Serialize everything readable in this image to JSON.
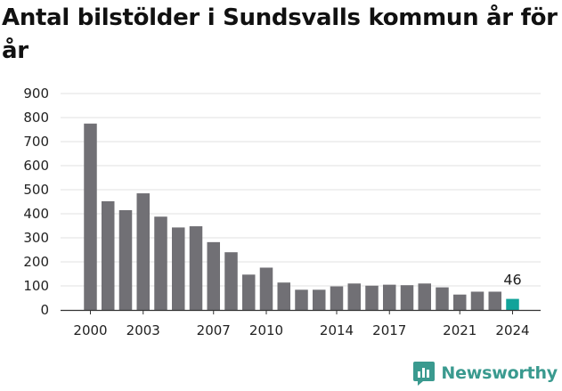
{
  "colors": {
    "bar": "#717075",
    "highlight": "#11a39a",
    "grid": "#e0e0e0",
    "axis": "#333333",
    "brand": "#3a9a8f"
  },
  "brand": {
    "name": "Newsworthy",
    "icon": "newsworthy-logo-icon"
  },
  "chart_data": {
    "type": "bar",
    "title": "Antal bilstölder i Sundsvalls kommun år för år",
    "xlabel": "",
    "ylabel": "",
    "ylim": [
      0,
      900
    ],
    "yticks": [
      0,
      100,
      200,
      300,
      400,
      500,
      600,
      700,
      800,
      900
    ],
    "grid": true,
    "categories": [
      "2000",
      "2001",
      "2002",
      "2003",
      "2004",
      "2005",
      "2006",
      "2007",
      "2008",
      "2009",
      "2010",
      "2011",
      "2012",
      "2013",
      "2014",
      "2015",
      "2016",
      "2017",
      "2018",
      "2019",
      "2020",
      "2021",
      "2022",
      "2023",
      "2024"
    ],
    "xtick_labels": [
      "2000",
      "2003",
      "2007",
      "2010",
      "2014",
      "2017",
      "2021",
      "2024"
    ],
    "values": [
      775,
      452,
      415,
      485,
      388,
      343,
      348,
      282,
      240,
      147,
      176,
      114,
      84,
      84,
      98,
      110,
      101,
      105,
      103,
      110,
      94,
      64,
      76,
      76,
      46
    ],
    "highlight_category": "2024",
    "data_labels": [
      {
        "category": "2024",
        "text": "46"
      }
    ]
  }
}
